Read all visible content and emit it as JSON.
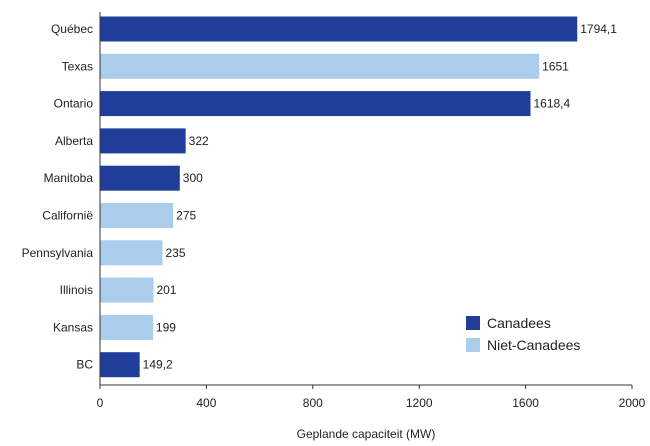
{
  "chart_data": {
    "type": "bar",
    "orientation": "horizontal",
    "categories": [
      "Québec",
      "Texas",
      "Ontario",
      "Alberta",
      "Manitoba",
      "Californië",
      "Pennsylvania",
      "Illinois",
      "Kansas",
      "BC"
    ],
    "values": [
      1794.1,
      1651,
      1618.4,
      322,
      300,
      275,
      235,
      201,
      199,
      149.2
    ],
    "value_labels": [
      "1794,1",
      "1651",
      "1618,4",
      "322",
      "300",
      "275",
      "235",
      "201",
      "199",
      "149,2"
    ],
    "groups": [
      "Canadees",
      "Niet-Canadees",
      "Canadees",
      "Canadees",
      "Canadees",
      "Niet-Canadees",
      "Niet-Canadees",
      "Niet-Canadees",
      "Niet-Canadees",
      "Canadees"
    ],
    "legend": [
      {
        "name": "Canadees",
        "color": "#1f3d99"
      },
      {
        "name": "Niet-Canadees",
        "color": "#a9cdeb"
      }
    ],
    "legend_position": "bottom-right",
    "title": "",
    "xlabel": "Geplande capaciteit (MW)",
    "ylabel": "",
    "xlim": [
      0,
      2000
    ],
    "xticks": [
      0,
      400,
      800,
      1200,
      1600,
      2000
    ],
    "grid": false
  }
}
